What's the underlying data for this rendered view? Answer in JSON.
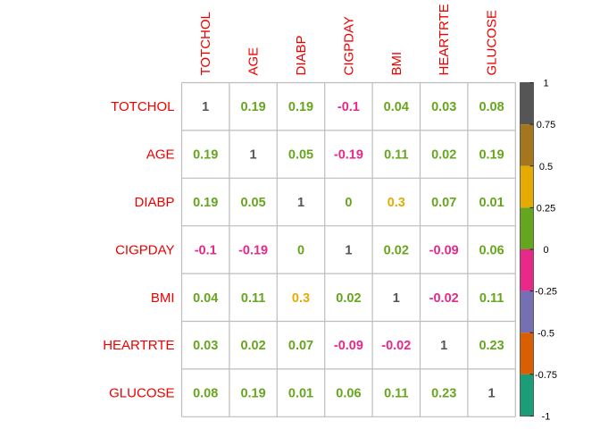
{
  "chart_data": {
    "type": "heatmap",
    "title": "",
    "variables": [
      "TOTCHOL",
      "AGE",
      "DIABP",
      "CIGPDAY",
      "BMI",
      "HEARTRTE",
      "GLUCOSE"
    ],
    "matrix": [
      [
        1,
        0.19,
        0.19,
        -0.1,
        0.04,
        0.03,
        0.08
      ],
      [
        0.19,
        1,
        0.05,
        -0.19,
        0.11,
        0.02,
        0.19
      ],
      [
        0.19,
        0.05,
        1,
        0,
        0.3,
        0.07,
        0.01
      ],
      [
        -0.1,
        -0.19,
        0,
        1,
        0.02,
        -0.09,
        0.06
      ],
      [
        0.04,
        0.11,
        0.3,
        0.02,
        1,
        -0.02,
        0.11
      ],
      [
        0.03,
        0.02,
        0.07,
        -0.09,
        -0.02,
        1,
        0.23
      ],
      [
        0.08,
        0.19,
        0.01,
        0.06,
        0.11,
        0.23,
        1
      ]
    ],
    "label_color": "#ee0000",
    "colorbar": {
      "range": [
        -1,
        1
      ],
      "ticks": [
        1,
        0.75,
        0.5,
        0.25,
        0,
        -0.25,
        -0.5,
        -0.75,
        -1
      ],
      "tick_labels": [
        "1",
        "0.75",
        "0.5",
        "0.25",
        "0",
        "-0.25",
        "-0.5",
        "-0.75",
        "-1"
      ],
      "bins": [
        {
          "from": 0.75,
          "to": 1,
          "color": "#555555"
        },
        {
          "from": 0.5,
          "to": 0.75,
          "color": "#a6761d"
        },
        {
          "from": 0.25,
          "to": 0.5,
          "color": "#e6ab02"
        },
        {
          "from": 0,
          "to": 0.25,
          "color": "#66a61e"
        },
        {
          "from": -0.25,
          "to": 0,
          "color": "#e7298a"
        },
        {
          "from": -0.5,
          "to": -0.25,
          "color": "#7570b3"
        },
        {
          "from": -0.75,
          "to": -0.5,
          "color": "#d95f02"
        },
        {
          "from": -1,
          "to": -0.75,
          "color": "#1b9e77"
        }
      ]
    },
    "grid": true
  }
}
